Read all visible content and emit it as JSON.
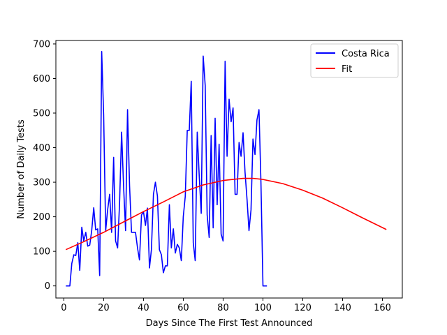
{
  "chart_data": {
    "type": "line",
    "title": "",
    "xlabel": "Days Since The First Test Announced",
    "ylabel": "Number of Daily Tests",
    "xlim": [
      -4,
      170
    ],
    "ylim": [
      -35,
      710
    ],
    "xticks": [
      0,
      20,
      40,
      60,
      80,
      100,
      120,
      140,
      160
    ],
    "yticks": [
      0,
      100,
      200,
      300,
      400,
      500,
      600,
      700
    ],
    "grid": false,
    "legend_position": "top-right",
    "series": [
      {
        "name": "Costa Rica",
        "color": "#0000ff",
        "x": [
          1,
          2,
          3,
          4,
          5,
          6,
          7,
          8,
          9,
          10,
          11,
          12,
          13,
          14,
          15,
          16,
          17,
          18,
          19,
          20,
          21,
          22,
          23,
          24,
          25,
          26,
          27,
          28,
          29,
          30,
          31,
          32,
          33,
          34,
          35,
          36,
          37,
          38,
          39,
          40,
          41,
          42,
          43,
          44,
          45,
          46,
          47,
          48,
          49,
          50,
          51,
          52,
          53,
          54,
          55,
          56,
          57,
          58,
          59,
          60,
          61,
          62,
          63,
          64,
          65,
          66,
          67,
          68,
          69,
          70,
          71,
          72,
          73,
          74,
          75,
          76,
          77,
          78,
          79,
          80,
          81,
          82,
          83,
          84,
          85,
          86,
          87,
          88,
          89,
          90,
          91,
          92,
          93,
          94,
          95,
          96,
          97,
          98,
          99,
          100,
          101,
          102
        ],
        "y": [
          0,
          0,
          0,
          65,
          90,
          88,
          125,
          45,
          170,
          130,
          155,
          115,
          118,
          160,
          226,
          162,
          165,
          30,
          678,
          495,
          160,
          220,
          265,
          155,
          372,
          130,
          110,
          240,
          445,
          290,
          160,
          510,
          290,
          155,
          155,
          155,
          110,
          75,
          205,
          215,
          175,
          225,
          52,
          105,
          265,
          300,
          260,
          105,
          90,
          38,
          58,
          58,
          235,
          110,
          165,
          95,
          120,
          110,
          73,
          200,
          260,
          450,
          450,
          592,
          125,
          73,
          445,
          320,
          210,
          665,
          580,
          205,
          140,
          435,
          168,
          485,
          235,
          410,
          150,
          130,
          650,
          375,
          540,
          475,
          515,
          265,
          265,
          415,
          375,
          443,
          330,
          250,
          160,
          220,
          425,
          380,
          480,
          510,
          300,
          0,
          0,
          0
        ]
      },
      {
        "name": "Fit",
        "color": "#ff0000",
        "x": [
          1,
          10,
          20,
          30,
          40,
          50,
          60,
          70,
          80,
          90,
          95,
          100,
          110,
          120,
          130,
          140,
          150,
          162
        ],
        "y": [
          105,
          128,
          155,
          185,
          215,
          243,
          272,
          292,
          305,
          311,
          311,
          308,
          296,
          277,
          254,
          226,
          197,
          163
        ]
      }
    ]
  }
}
